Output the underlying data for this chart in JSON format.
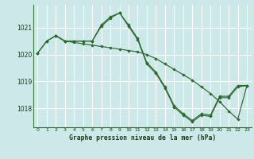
{
  "background_color": "#cce8e8",
  "grid_color": "#ffffff",
  "line_color": "#2d6a2d",
  "marker_color": "#2d6a2d",
  "title": "Graphe pression niveau de la mer (hPa)",
  "xlim": [
    -0.5,
    23.5
  ],
  "ylim": [
    1017.3,
    1021.85
  ],
  "yticks": [
    1018,
    1019,
    1020,
    1021
  ],
  "xticks": [
    0,
    1,
    2,
    3,
    4,
    5,
    6,
    7,
    8,
    9,
    10,
    11,
    12,
    13,
    14,
    15,
    16,
    17,
    18,
    19,
    20,
    21,
    22,
    23
  ],
  "series": [
    {
      "x": [
        0,
        1,
        2,
        3,
        4,
        5,
        6,
        7,
        8,
        9,
        10,
        11,
        12,
        13,
        14,
        15,
        16,
        17,
        18,
        19,
        20,
        21,
        22,
        23
      ],
      "y": [
        1020.05,
        1020.5,
        1020.7,
        1020.5,
        1020.5,
        1020.5,
        1020.5,
        1021.1,
        1021.4,
        1021.55,
        1021.1,
        1020.6,
        1019.7,
        1019.35,
        1018.8,
        1018.1,
        1017.8,
        1017.55,
        1017.8,
        1017.75,
        1018.45,
        1018.45,
        1018.85,
        1018.85
      ]
    },
    {
      "x": [
        0,
        1,
        2,
        3,
        4,
        5,
        6,
        7,
        8,
        9,
        10,
        11,
        12,
        13,
        14,
        15,
        16,
        17,
        18,
        19,
        20,
        21,
        22,
        23
      ],
      "y": [
        1020.05,
        1020.5,
        1020.7,
        1020.5,
        1020.5,
        1020.5,
        1020.5,
        1021.05,
        1021.35,
        1021.55,
        1021.05,
        1020.55,
        1019.65,
        1019.3,
        1018.75,
        1018.05,
        1017.75,
        1017.5,
        1017.75,
        1017.7,
        1018.4,
        1018.4,
        1018.8,
        1018.85
      ]
    },
    {
      "x": [
        2,
        3,
        4,
        5,
        6,
        7,
        8,
        9,
        10,
        11,
        12,
        13,
        14,
        15,
        16,
        17,
        18,
        19,
        20,
        21,
        22,
        23
      ],
      "y": [
        1020.7,
        1020.5,
        1020.45,
        1020.4,
        1020.35,
        1020.3,
        1020.25,
        1020.2,
        1020.15,
        1020.1,
        1020.0,
        1019.85,
        1019.65,
        1019.45,
        1019.25,
        1019.05,
        1018.8,
        1018.55,
        1018.25,
        1017.9,
        1017.6,
        1018.85
      ]
    }
  ]
}
